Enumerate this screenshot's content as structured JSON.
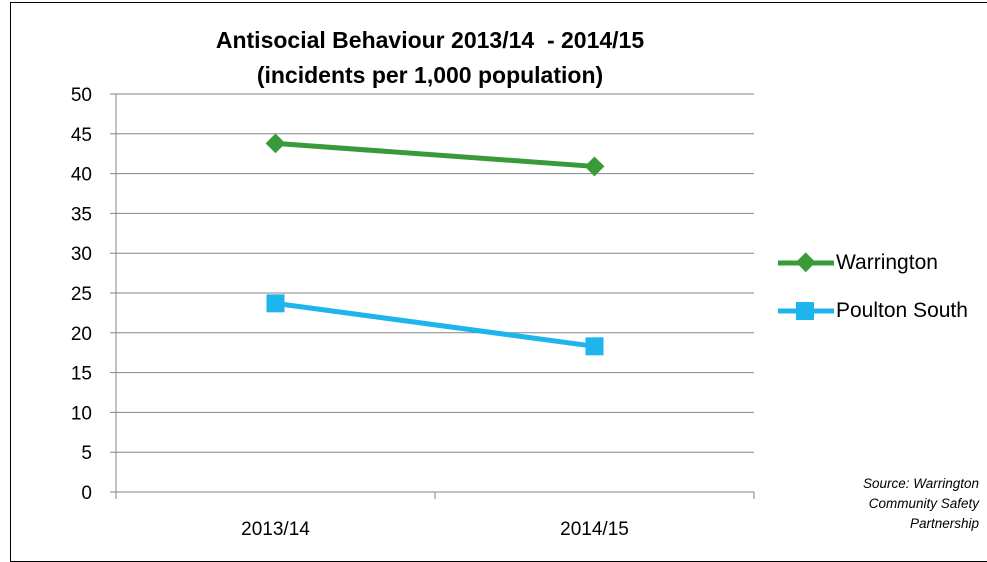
{
  "chart_data": {
    "type": "line",
    "title_lines": [
      "Antisocial Behaviour 2013/14  - 2014/15",
      "(incidents per 1,000 population)"
    ],
    "categories": [
      "2013/14",
      "2014/15"
    ],
    "ylim": [
      0,
      50
    ],
    "yticks": [
      0,
      5,
      10,
      15,
      20,
      25,
      30,
      35,
      40,
      45,
      50
    ],
    "grid": true,
    "legend_position": "right",
    "series": [
      {
        "name": "Warrington",
        "values": [
          43.8,
          40.9
        ],
        "color": "#3a9a3a",
        "marker": "diamond"
      },
      {
        "name": "Poulton South",
        "values": [
          23.7,
          18.3
        ],
        "color": "#1eb4ec",
        "marker": "square"
      }
    ],
    "source_lines": [
      "Source: Warrington",
      "Community Safety",
      "Partnership"
    ]
  }
}
